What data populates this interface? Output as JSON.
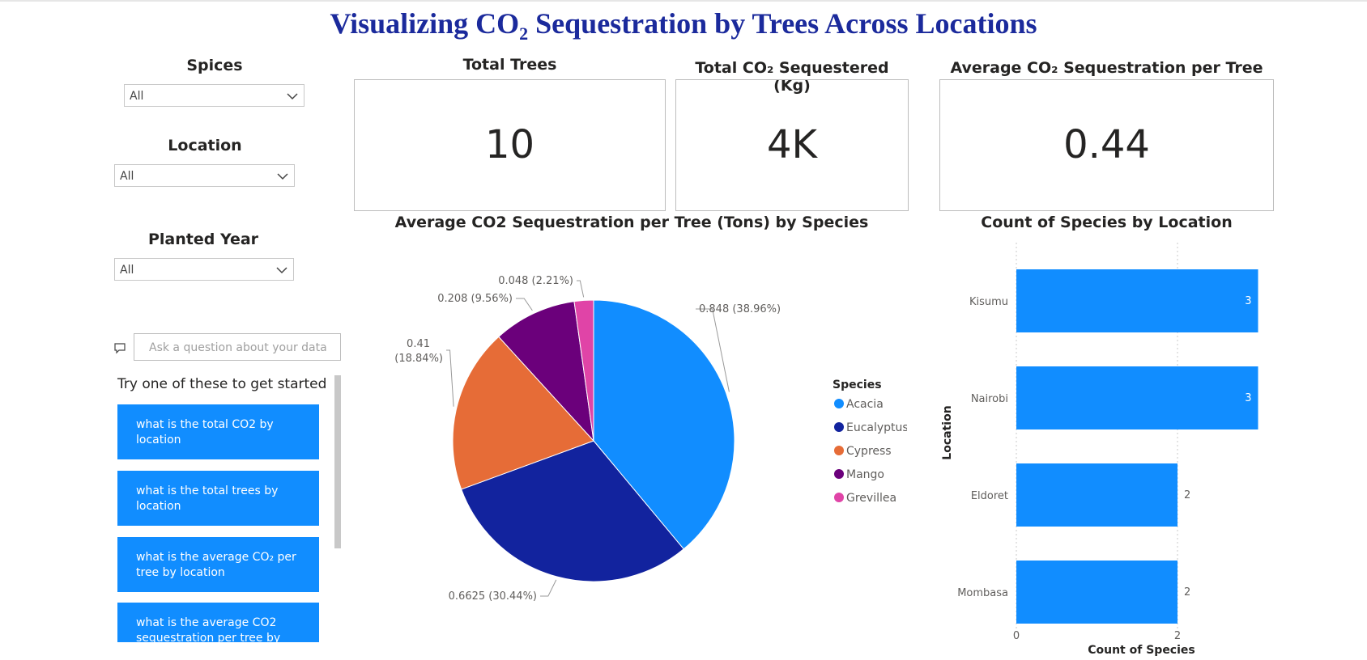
{
  "title": {
    "main": "Visualizing CO",
    "sub": "2",
    "rest": " Sequestration by Trees Across Locations"
  },
  "slicers": [
    {
      "title": "Spices",
      "value": "All"
    },
    {
      "title": "Location",
      "value": "All"
    },
    {
      "title": "Planted Year",
      "value": "All"
    }
  ],
  "qa": {
    "placeholder": "Ask a question about your data",
    "hint": "Try one of these to get started",
    "suggestions": [
      "what is the total CO2 by location",
      "what is the total trees by location",
      "what is the average CO₂ per tree by location",
      "what is the average CO2 sequestration per tree by"
    ]
  },
  "cards": [
    {
      "title": "Total Trees",
      "value": "10"
    },
    {
      "title": "Total CO₂ Sequestered (Kg)",
      "value": "4K"
    },
    {
      "title": "Average CO₂ Sequestration per Tree",
      "value": "0.44"
    }
  ],
  "chart_data": [
    {
      "type": "pie",
      "title": "Average CO2 Sequestration per Tree (Tons) by Species",
      "legend_title": "Species",
      "legend_position": "right",
      "slices": [
        {
          "name": "Acacia",
          "value": 0.848,
          "label": "0.848 (38.96%)",
          "color": "#118dff"
        },
        {
          "name": "Eucalyptus",
          "value": 0.6625,
          "label": "0.6625 (30.44%)",
          "color": "#12239e"
        },
        {
          "name": "Cypress",
          "value": 0.41,
          "label": "0.41 (18.84%)",
          "color": "#e66c37"
        },
        {
          "name": "Mango",
          "value": 0.208,
          "label": "0.208 (9.56%)",
          "color": "#6b007b"
        },
        {
          "name": "Grevillea",
          "value": 0.048,
          "label": "0.048 (2.21%)",
          "color": "#e044a7"
        }
      ]
    },
    {
      "type": "bar",
      "orientation": "horizontal",
      "title": "Count of Species by Location",
      "categories": [
        "Kisumu",
        "Nairobi",
        "Eldoret",
        "Mombasa"
      ],
      "values": [
        3,
        3,
        2,
        2
      ],
      "xlabel": "Count of Species",
      "ylabel": "Location",
      "xticks": [
        "0",
        "2"
      ],
      "xlim": [
        0,
        3
      ],
      "color": "#118dff",
      "grid": true
    }
  ]
}
